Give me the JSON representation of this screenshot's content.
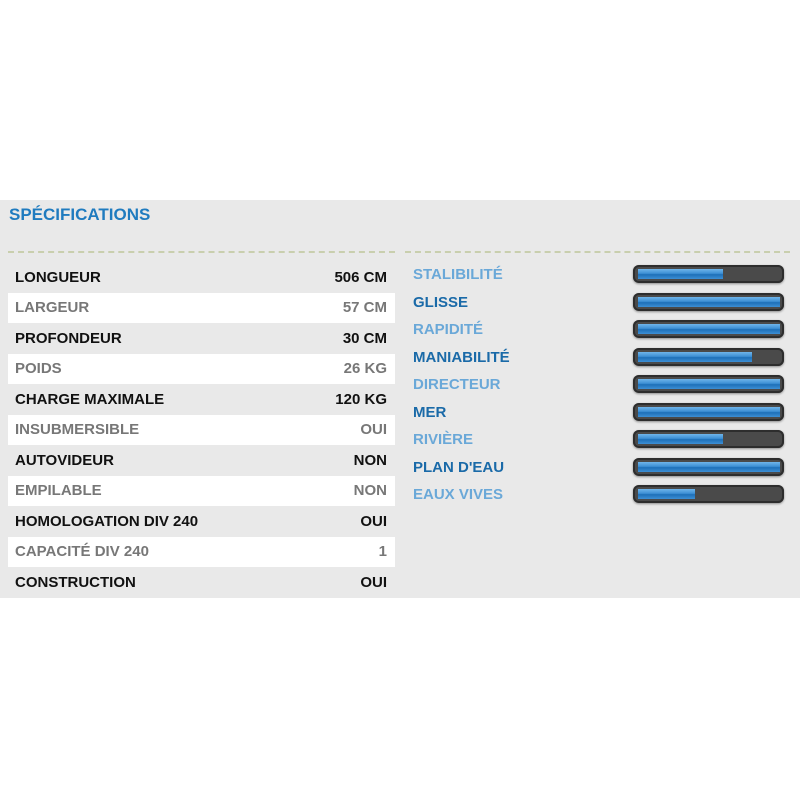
{
  "title": "SPÉCIFICATIONS",
  "specs": [
    {
      "label": "LONGUEUR",
      "value": "506 CM"
    },
    {
      "label": "LARGEUR",
      "value": "57 CM"
    },
    {
      "label": "PROFONDEUR",
      "value": "30 CM"
    },
    {
      "label": "POIDS",
      "value": "26 KG"
    },
    {
      "label": "CHARGE MAXIMALE",
      "value": "120 KG"
    },
    {
      "label": "INSUBMERSIBLE",
      "value": "OUI"
    },
    {
      "label": "AUTOVIDEUR",
      "value": "NON"
    },
    {
      "label": "EMPILABLE",
      "value": "NON"
    },
    {
      "label": "HOMOLOGATION DIV 240",
      "value": "OUI"
    },
    {
      "label": "CAPACITÉ DIV 240",
      "value": "1"
    },
    {
      "label": "CONSTRUCTION",
      "value": "OUI"
    }
  ],
  "ratings": [
    {
      "label": "STALIBILITÉ",
      "level": 0.6
    },
    {
      "label": "GLISSE",
      "level": 1.0
    },
    {
      "label": "RAPIDITÉ",
      "level": 1.0
    },
    {
      "label": "MANIABILITÉ",
      "level": 0.8
    },
    {
      "label": "DIRECTEUR",
      "level": 1.0
    },
    {
      "label": "MER",
      "level": 1.0
    },
    {
      "label": "RIVIÈRE",
      "level": 0.6
    },
    {
      "label": "PLAN D'EAU",
      "level": 1.0
    },
    {
      "label": "EAUX VIVES",
      "level": 0.4
    }
  ],
  "colors": {
    "title": "#1f7bbf",
    "bar_fill": "#3d8fd4",
    "bar_track": "#4a4a4a"
  }
}
